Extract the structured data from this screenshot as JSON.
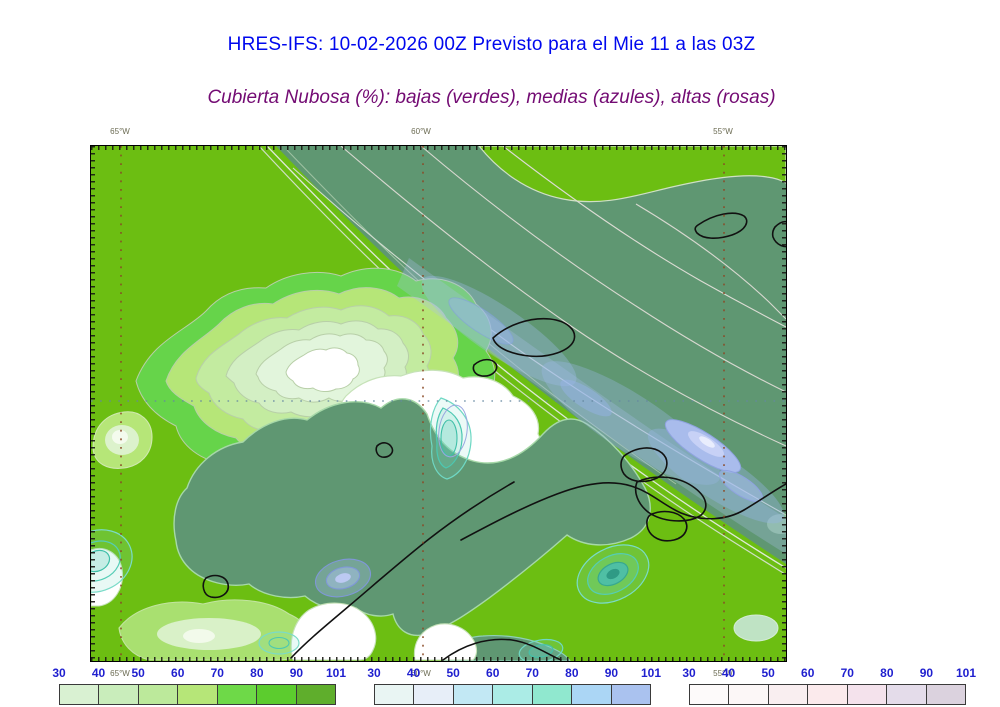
{
  "header": {
    "title": "HRES-IFS: 10-02-2026 00Z Previsto para el Mie 11 a las 03Z",
    "subtitle": "Cubierta Nubosa (%): bajas (verdes), medias (azules), altas (rosas)",
    "title_color": "#0008ee",
    "subtitle_color": "#730b73"
  },
  "map": {
    "lon_labels": [
      "65°W",
      "60°W",
      "55°W"
    ],
    "gridline_color": "#8a4a26",
    "legend_meaning": {
      "low_clouds": "verdes",
      "mid_clouds": "azules",
      "high_clouds": "rosas"
    },
    "base_colors": {
      "low_cloud_full": "#6cbe12",
      "overlap_sea_green": "#5f9772",
      "clear": "#ffffff"
    }
  },
  "colorbars": [
    {
      "name": "bajas-verdes",
      "ticks": [
        "30",
        "40",
        "50",
        "60",
        "70",
        "80",
        "90",
        "101"
      ],
      "colors": [
        "#d9f1d2",
        "#c9edbb",
        "#bce99b",
        "#b6e678",
        "#6ed948",
        "#5ccc2e",
        "#5fae2c"
      ]
    },
    {
      "name": "medias-azules",
      "ticks": [
        "30",
        "40",
        "50",
        "60",
        "70",
        "80",
        "90",
        "101"
      ],
      "colors": [
        "#e9f5f3",
        "#e7eef8",
        "#c2e8f4",
        "#abece6",
        "#90e8cf",
        "#abd6f5",
        "#aac2ef"
      ]
    },
    {
      "name": "altas-rosas",
      "ticks": [
        "30",
        "40",
        "50",
        "60",
        "70",
        "80",
        "90",
        "101"
      ],
      "colors": [
        "#fdfafa",
        "#fcf7f7",
        "#f9eef0",
        "#fbeaec",
        "#f4e2ec",
        "#e4dcea",
        "#dbd2de"
      ]
    }
  ]
}
